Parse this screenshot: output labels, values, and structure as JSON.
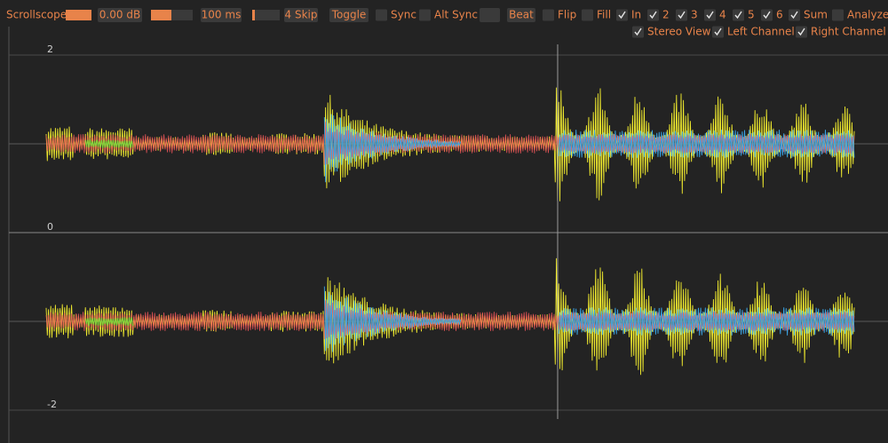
{
  "toolbar": {
    "title": "Scrollscope",
    "gain": "0.00 dB",
    "length": "100 ms",
    "skip": "4 Skip",
    "buttons": [
      "Toggle",
      "Beat"
    ],
    "checkboxes": [
      {
        "label": "Sync",
        "checked": false
      },
      {
        "label": "Alt Sync",
        "checked": false
      },
      {
        "label": "Flip",
        "checked": false
      },
      {
        "label": "Fill",
        "checked": false
      },
      {
        "label": "In",
        "checked": true
      },
      {
        "label": "2",
        "checked": true
      },
      {
        "label": "3",
        "checked": true
      },
      {
        "label": "4",
        "checked": true
      },
      {
        "label": "5",
        "checked": true
      },
      {
        "label": "6",
        "checked": true
      },
      {
        "label": "Sum",
        "checked": true
      },
      {
        "label": "Analyze",
        "checked": false
      },
      {
        "label": "Stereo View",
        "checked": true
      },
      {
        "label": "Left Channel",
        "checked": true
      },
      {
        "label": "Right Channel",
        "checked": true
      }
    ]
  },
  "scope": {
    "labels": [
      "2",
      "0",
      "-2"
    ]
  }
}
